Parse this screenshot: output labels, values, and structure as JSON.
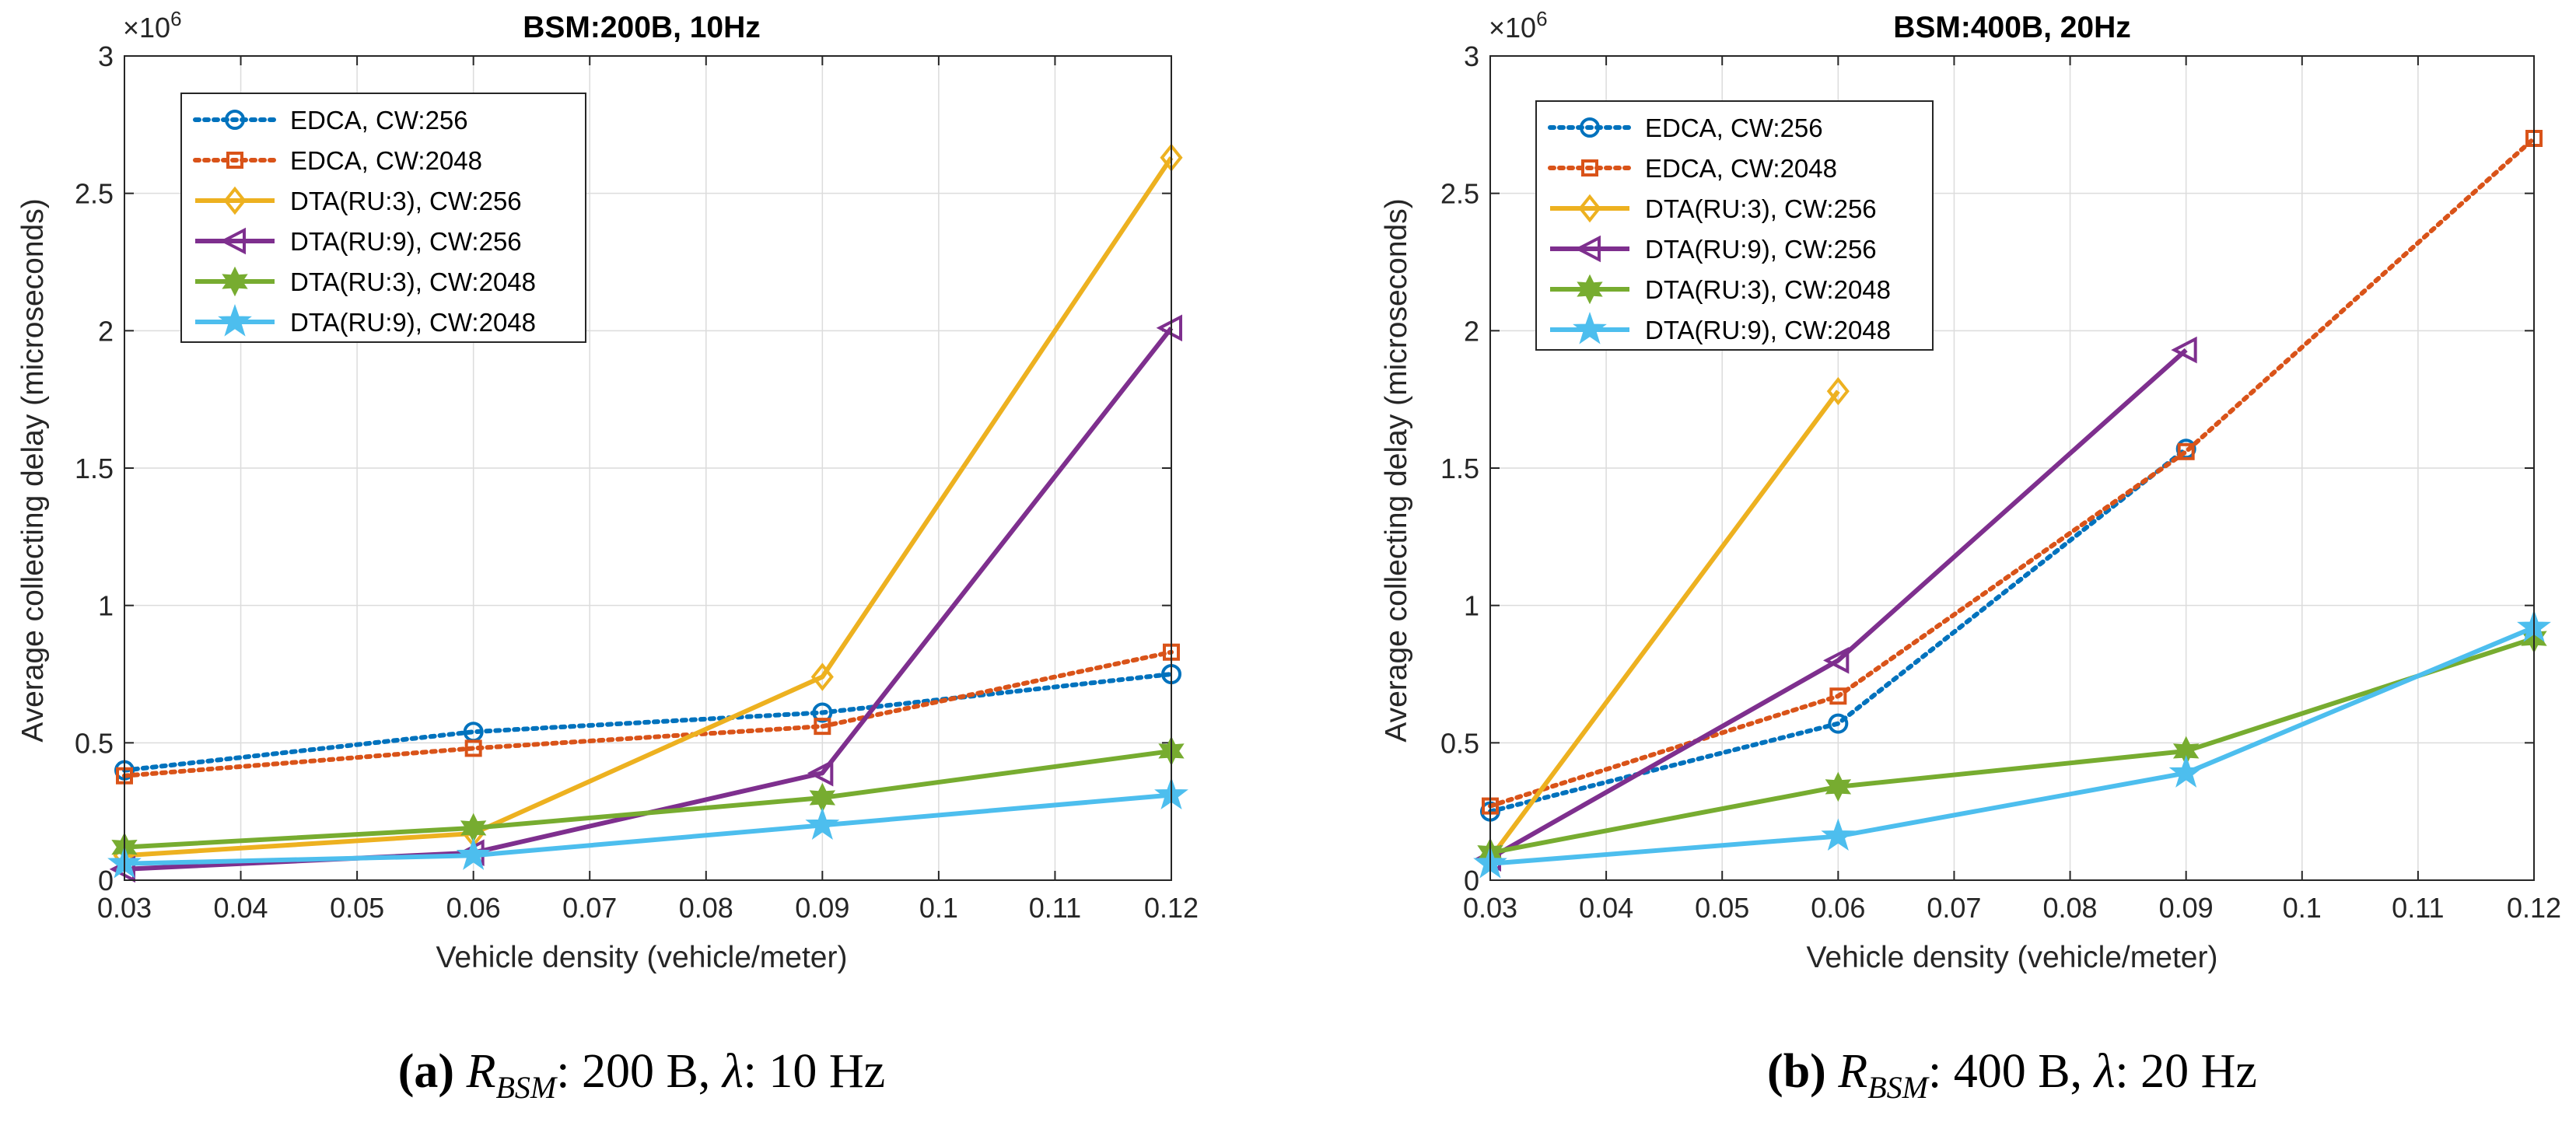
{
  "chart_data": [
    {
      "type": "line",
      "title": "BSM:200B, 10Hz",
      "xlabel": "Vehicle density (vehicle/meter)",
      "ylabel": "Average collecting delay (microseconds)",
      "y_multiplier": "×10",
      "y_exponent": "6",
      "xlim": [
        0.03,
        0.12
      ],
      "ylim": [
        0,
        3
      ],
      "xticks": [
        "0.03",
        "0.04",
        "0.05",
        "0.06",
        "0.07",
        "0.08",
        "0.09",
        "0.1",
        "0.11",
        "0.12"
      ],
      "yticks": [
        "0",
        "0.5",
        "1",
        "1.5",
        "2",
        "2.5",
        "3"
      ],
      "grid": true,
      "legend_position": "top-left",
      "x": [
        0.03,
        0.06,
        0.09,
        0.12
      ],
      "series": [
        {
          "name": "EDCA, CW:256",
          "values": [
            0.4,
            0.54,
            0.61,
            0.75
          ]
        },
        {
          "name": "EDCA, CW:2048",
          "values": [
            0.38,
            0.48,
            0.56,
            0.83
          ]
        },
        {
          "name": "DTA(RU:3), CW:256",
          "values": [
            0.09,
            0.17,
            0.74,
            2.63
          ]
        },
        {
          "name": "DTA(RU:9), CW:256",
          "values": [
            0.04,
            0.1,
            0.39,
            2.01
          ]
        },
        {
          "name": "DTA(RU:3), CW:2048",
          "values": [
            0.12,
            0.19,
            0.3,
            0.47
          ]
        },
        {
          "name": "DTA(RU:9), CW:2048",
          "values": [
            0.06,
            0.09,
            0.2,
            0.31
          ]
        }
      ],
      "caption": {
        "label": "(a)",
        "var_main": "R",
        "var_sub": "BSM",
        "mid": ": 200 B, ",
        "lambda": "λ",
        "end": ": 10 Hz"
      }
    },
    {
      "type": "line",
      "title": "BSM:400B, 20Hz",
      "xlabel": "Vehicle density (vehicle/meter)",
      "ylabel": "Average collecting delay (microseconds)",
      "y_multiplier": "×10",
      "y_exponent": "6",
      "xlim": [
        0.03,
        0.12
      ],
      "ylim": [
        0,
        3
      ],
      "xticks": [
        "0.03",
        "0.04",
        "0.05",
        "0.06",
        "0.07",
        "0.08",
        "0.09",
        "0.1",
        "0.11",
        "0.12"
      ],
      "yticks": [
        "0",
        "0.5",
        "1",
        "1.5",
        "2",
        "2.5",
        "3"
      ],
      "grid": true,
      "legend_position": "top-left",
      "x": [
        0.03,
        0.06,
        0.09,
        0.12
      ],
      "series": [
        {
          "name": "EDCA, CW:256",
          "values": [
            0.25,
            0.57,
            1.57,
            null
          ]
        },
        {
          "name": "EDCA, CW:2048",
          "values": [
            0.27,
            0.67,
            1.56,
            2.7
          ]
        },
        {
          "name": "DTA(RU:3), CW:256",
          "values": [
            0.08,
            1.78,
            null,
            null
          ]
        },
        {
          "name": "DTA(RU:9), CW:256",
          "values": [
            0.08,
            0.8,
            1.93,
            null
          ]
        },
        {
          "name": "DTA(RU:3), CW:2048",
          "values": [
            0.1,
            0.34,
            0.47,
            0.88
          ]
        },
        {
          "name": "DTA(RU:9), CW:2048",
          "values": [
            0.06,
            0.16,
            0.39,
            0.92
          ]
        }
      ],
      "caption": {
        "label": "(b)",
        "var_main": "R",
        "var_sub": "BSM",
        "mid": ": 400 B, ",
        "lambda": "λ",
        "end": ": 20 Hz"
      }
    }
  ],
  "series_style": [
    {
      "color": "#0072BD",
      "dash": "dotted",
      "marker": "circle"
    },
    {
      "color": "#D95319",
      "dash": "dotted",
      "marker": "square"
    },
    {
      "color": "#EDB120",
      "dash": "solid",
      "marker": "diamond"
    },
    {
      "color": "#7E2F8E",
      "dash": "solid",
      "marker": "triangle-left"
    },
    {
      "color": "#77AC30",
      "dash": "solid",
      "marker": "hexagram"
    },
    {
      "color": "#4DBEEE",
      "dash": "solid",
      "marker": "pentagram"
    }
  ]
}
